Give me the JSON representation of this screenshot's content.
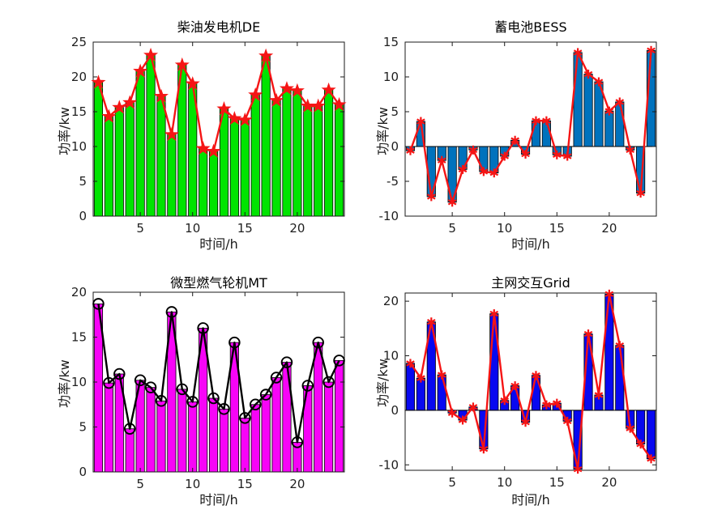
{
  "figure": {
    "background_color": "#ffffff",
    "axis_color": "#1a1a1a",
    "tick_text_color": "#1f1f1f"
  },
  "chart_data": [
    {
      "type": "bar",
      "line_overlay": true,
      "title": "柴油发电机DE",
      "xlabel": "时间/h",
      "ylabel": "功率/kw",
      "x": [
        1,
        2,
        3,
        4,
        5,
        6,
        7,
        8,
        9,
        10,
        11,
        12,
        13,
        14,
        15,
        16,
        17,
        18,
        19,
        20,
        21,
        22,
        23,
        24
      ],
      "values": [
        19.2,
        14.3,
        15.6,
        16.3,
        20.8,
        23.1,
        17.2,
        11.7,
        21.7,
        19.0,
        9.7,
        9.3,
        15.4,
        14.0,
        13.8,
        17.4,
        23.0,
        16.6,
        18.3,
        18.0,
        15.8,
        15.8,
        18.1,
        16.0
      ],
      "xlim": [
        0.5,
        24.5
      ],
      "ylim": [
        0,
        25
      ],
      "xticks": [
        5,
        10,
        15,
        20
      ],
      "yticks": [
        0,
        5,
        10,
        15,
        20,
        25
      ],
      "bar_color": "#00e400",
      "bar_edge_color": "#000000",
      "line_color": "#f51515",
      "marker": "pentagram-star",
      "marker_color": "#f51515"
    },
    {
      "type": "bar",
      "line_overlay": true,
      "title": "蓄电池BESS",
      "xlabel": "时间/h",
      "ylabel": "功率/kw",
      "x": [
        1,
        2,
        3,
        4,
        5,
        6,
        7,
        8,
        9,
        10,
        11,
        12,
        13,
        14,
        15,
        16,
        17,
        18,
        19,
        20,
        21,
        22,
        23,
        24
      ],
      "values": [
        -0.6,
        3.6,
        -7.2,
        -2.0,
        -8.0,
        -3.3,
        -0.5,
        -3.6,
        -3.8,
        -1.4,
        0.9,
        -1.1,
        3.7,
        3.7,
        -1.2,
        -1.4,
        13.5,
        10.4,
        9.3,
        5.1,
        6.4,
        -0.5,
        -6.7,
        13.8
      ],
      "xlim": [
        0.5,
        24.5
      ],
      "ylim": [
        -10,
        15
      ],
      "xticks": [
        5,
        10,
        15,
        20
      ],
      "yticks": [
        -10,
        -5,
        0,
        5,
        10,
        15
      ],
      "bar_color": "#0072bd",
      "bar_edge_color": "#000000",
      "line_color": "#f51515",
      "marker": "asterisk",
      "marker_color": "#f51515"
    },
    {
      "type": "bar",
      "line_overlay": true,
      "title": "微型燃气轮机MT",
      "xlabel": "时间/h",
      "ylabel": "功率/kw",
      "x": [
        1,
        2,
        3,
        4,
        5,
        6,
        7,
        8,
        9,
        10,
        11,
        12,
        13,
        14,
        15,
        16,
        17,
        18,
        19,
        20,
        21,
        22,
        23,
        24
      ],
      "values": [
        18.7,
        9.9,
        10.9,
        4.8,
        10.2,
        9.4,
        7.9,
        17.8,
        9.2,
        7.8,
        16.0,
        8.2,
        7.0,
        14.4,
        6.0,
        7.5,
        8.6,
        10.5,
        12.2,
        3.3,
        9.6,
        14.4,
        10.0,
        12.4
      ],
      "xlim": [
        0.5,
        24.5
      ],
      "ylim": [
        0,
        20
      ],
      "xticks": [
        5,
        10,
        15,
        20
      ],
      "yticks": [
        0,
        5,
        10,
        15,
        20
      ],
      "bar_color": "#f704f7",
      "bar_edge_color": "#000000",
      "line_color": "#000000",
      "marker": "circle",
      "marker_color": "#000000"
    },
    {
      "type": "bar",
      "line_overlay": true,
      "title": "主网交互Grid",
      "xlabel": "时间/h",
      "ylabel": "功率/kw",
      "x": [
        1,
        2,
        3,
        4,
        5,
        6,
        7,
        8,
        9,
        10,
        11,
        12,
        13,
        14,
        15,
        16,
        17,
        18,
        19,
        20,
        21,
        22,
        23,
        24
      ],
      "values": [
        8.6,
        5.9,
        16.2,
        6.5,
        -0.5,
        -1.8,
        0.6,
        -7.1,
        17.7,
        1.8,
        4.5,
        -2.2,
        6.4,
        1.0,
        1.3,
        -2.0,
        -10.8,
        14.0,
        2.8,
        21.3,
        11.9,
        -3.3,
        -6.2,
        -8.9
      ],
      "xlim": [
        0.5,
        24.5
      ],
      "ylim": [
        -11,
        21.5
      ],
      "xticks": [
        5,
        10,
        15,
        20
      ],
      "yticks": [
        -10,
        0,
        10,
        20
      ],
      "bar_color": "#0808f0",
      "bar_edge_color": "#000000",
      "line_color": "#f51515",
      "marker": "asterisk",
      "marker_color": "#f51515"
    }
  ]
}
